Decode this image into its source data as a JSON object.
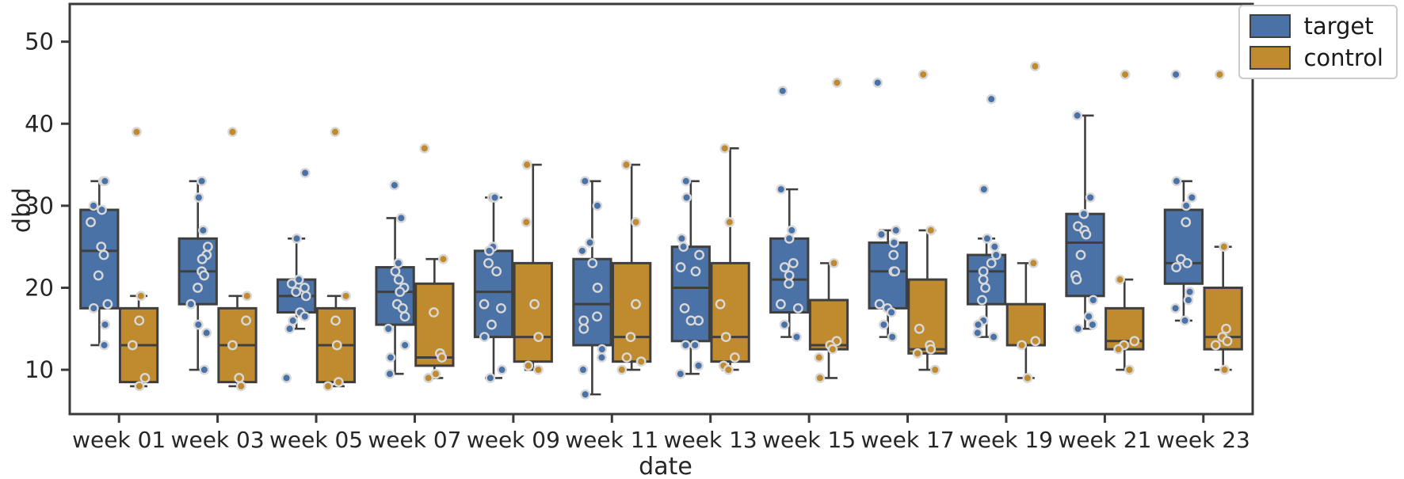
{
  "figure": {
    "background": "#ffffff"
  },
  "colors": {
    "target": "#4a72a6",
    "control": "#c08b2f",
    "box_edge": "#3f3f3f",
    "point_edge": "#d8d8d8",
    "spine": "#3a3a3a",
    "text": "#262626"
  },
  "legend": {
    "items": [
      {
        "label": "target",
        "color": "#4a72a6"
      },
      {
        "label": "control",
        "color": "#c08b2f"
      }
    ]
  },
  "chart_data": {
    "type": "boxplot+strip",
    "title": "",
    "xlabel": "date",
    "ylabel": "dbd",
    "grid": false,
    "legend_position": "upper right, outside axes",
    "ylim": [
      4.6,
      54.6
    ],
    "yticks": [
      10,
      20,
      30,
      40,
      50
    ],
    "categories": [
      "week 01",
      "week 03",
      "week 05",
      "week 07",
      "week 09",
      "week 11",
      "week 13",
      "week 15",
      "week 17",
      "week 19",
      "week 21",
      "week 23"
    ],
    "box_format": "[whisker_low, q1, median, q3, whisker_high]",
    "series": [
      {
        "name": "target",
        "color": "#4a72a6",
        "boxes": [
          [
            13,
            17.5,
            24.5,
            29.5,
            33
          ],
          [
            10,
            18,
            22,
            26,
            33
          ],
          [
            15,
            17,
            19,
            21,
            26
          ],
          [
            9.5,
            15.5,
            19.5,
            22.5,
            28.5
          ],
          [
            9,
            14,
            19.5,
            24.5,
            31
          ],
          [
            7,
            13,
            18,
            23.5,
            33
          ],
          [
            9.5,
            13.5,
            20,
            25,
            33
          ],
          [
            14,
            17,
            21,
            26,
            32
          ],
          [
            14,
            17.5,
            22,
            25.5,
            27
          ],
          [
            14,
            18,
            22,
            24,
            26
          ],
          [
            15,
            19,
            25.5,
            29,
            41
          ],
          [
            16,
            20.5,
            23,
            29.5,
            33
          ]
        ],
        "points": [
          [
            33,
            33,
            30,
            29.5,
            28,
            25,
            24,
            21.5,
            18,
            17.5,
            15.5,
            13
          ],
          [
            33,
            31,
            27,
            25,
            24,
            23.5,
            22,
            21.5,
            20,
            18,
            15.5,
            14.5,
            10
          ],
          [
            34,
            26,
            21,
            20.5,
            20,
            19.5,
            19,
            17,
            16.5,
            16,
            15,
            9
          ],
          [
            32.5,
            28.5,
            23,
            22,
            21,
            20,
            19.5,
            18,
            17.5,
            16.5,
            15,
            13,
            11.5,
            9.5
          ],
          [
            31,
            31,
            25,
            24.5,
            23,
            22,
            18,
            17.5,
            15.5,
            14,
            10,
            9
          ],
          [
            33,
            30,
            25.5,
            24.5,
            23,
            20,
            16.5,
            16,
            15,
            12.5,
            11.5,
            10,
            7
          ],
          [
            33,
            31,
            26,
            25,
            24,
            22.5,
            22,
            17.5,
            16,
            16,
            13,
            13,
            10.5,
            9.5
          ],
          [
            44,
            32,
            27,
            26,
            23,
            22.5,
            21.5,
            20.5,
            18,
            17.5,
            15.5,
            14
          ],
          [
            45,
            27,
            26.5,
            25.5,
            24,
            22,
            22,
            18,
            17.5,
            17,
            15.5,
            14
          ],
          [
            43,
            32,
            26,
            25,
            24,
            23,
            22,
            21,
            20,
            18.5,
            16,
            15.5,
            14.5,
            14
          ],
          [
            41,
            31,
            29,
            27.5,
            27,
            26.5,
            24,
            21.5,
            21,
            18.5,
            16.5,
            15.5,
            15
          ],
          [
            46,
            33,
            31,
            30,
            28,
            23.5,
            23,
            22.5,
            19.5,
            18.5,
            17.5,
            16
          ]
        ]
      },
      {
        "name": "control",
        "color": "#c08b2f",
        "boxes": [
          [
            8,
            8.5,
            13,
            17.5,
            19
          ],
          [
            8,
            8.5,
            13,
            17.5,
            19
          ],
          [
            8,
            8.5,
            13,
            17.5,
            19
          ],
          [
            9,
            10.5,
            11.5,
            20.5,
            23.5
          ],
          [
            10,
            11,
            14,
            23,
            35
          ],
          [
            10,
            11,
            14,
            23,
            35
          ],
          [
            10,
            11,
            14,
            23,
            37
          ],
          [
            9,
            12.5,
            13,
            18.5,
            23
          ],
          [
            10,
            12,
            12.5,
            21,
            27
          ],
          [
            9,
            13,
            13,
            18,
            23
          ],
          [
            10,
            12.5,
            13.5,
            17.5,
            21
          ],
          [
            10,
            12.5,
            14,
            20,
            25
          ]
        ],
        "points": [
          [
            39,
            19,
            16,
            13,
            9,
            8
          ],
          [
            39,
            19,
            16,
            13,
            9,
            8
          ],
          [
            39,
            19,
            16,
            13,
            8.5,
            8
          ],
          [
            37,
            23.5,
            17,
            12,
            11.5,
            9.5,
            9
          ],
          [
            35,
            28,
            18,
            14,
            10.5,
            10
          ],
          [
            35,
            28,
            18,
            14,
            11.5,
            11,
            10
          ],
          [
            37,
            28,
            18,
            14,
            11.5,
            10.5,
            10
          ],
          [
            45,
            23,
            13.5,
            13,
            12.5,
            11.5,
            9
          ],
          [
            46,
            27,
            15,
            13,
            12.5,
            12,
            10
          ],
          [
            47,
            23,
            13.5,
            13,
            9
          ],
          [
            46,
            21,
            13.5,
            13,
            12.5,
            10
          ],
          [
            46,
            25,
            15,
            14,
            13.5,
            13,
            10
          ]
        ]
      }
    ]
  }
}
